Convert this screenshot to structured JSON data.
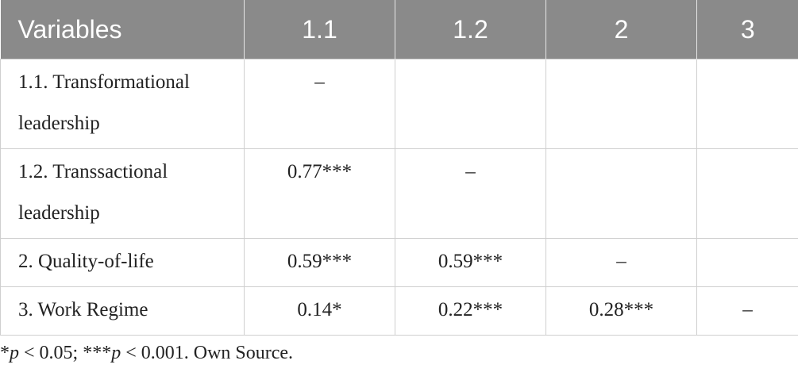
{
  "table": {
    "header": [
      "Variables",
      "1.1",
      "1.2",
      "2",
      "3"
    ],
    "rows": [
      [
        "1.1. Transformational leadership",
        "–",
        null,
        null,
        null
      ],
      [
        "1.2. Transsactional leadership",
        "0.77***",
        "–",
        null,
        null
      ],
      [
        "2. Quality-of-life",
        "0.59***",
        "0.59***",
        "–",
        null
      ],
      [
        "3. Work Regime",
        "0.14*",
        "0.22***",
        "0.28***",
        "–"
      ]
    ]
  },
  "footnote": [
    "*",
    "p",
    " < 0.05; ***",
    "p",
    " < 0.001. Own Source."
  ]
}
